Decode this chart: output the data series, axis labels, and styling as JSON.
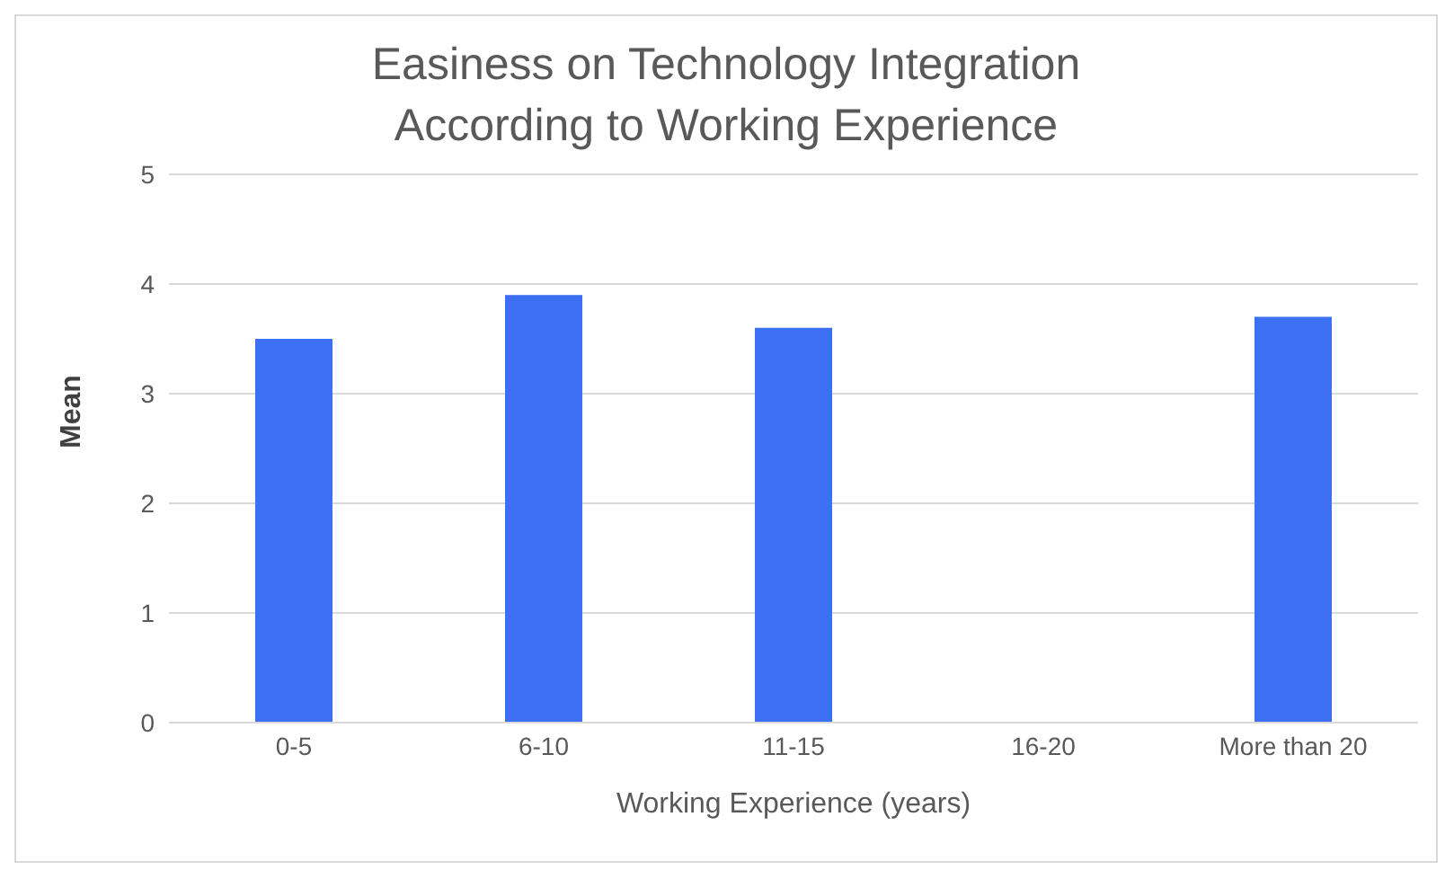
{
  "chart_data": {
    "type": "bar",
    "title": "Easiness on Technology Integration\nAccording to Working Experience",
    "xlabel": "Working Experience (years)",
    "ylabel": "Mean",
    "categories": [
      "0-5",
      "6-10",
      "11-15",
      "16-20",
      "More than 20"
    ],
    "values": [
      3.5,
      3.9,
      3.6,
      null,
      3.7
    ],
    "color": "#3d6ff2",
    "ylim": [
      0,
      5
    ],
    "yticks": [
      0,
      1,
      2,
      3,
      4,
      5
    ],
    "grid": "y"
  }
}
